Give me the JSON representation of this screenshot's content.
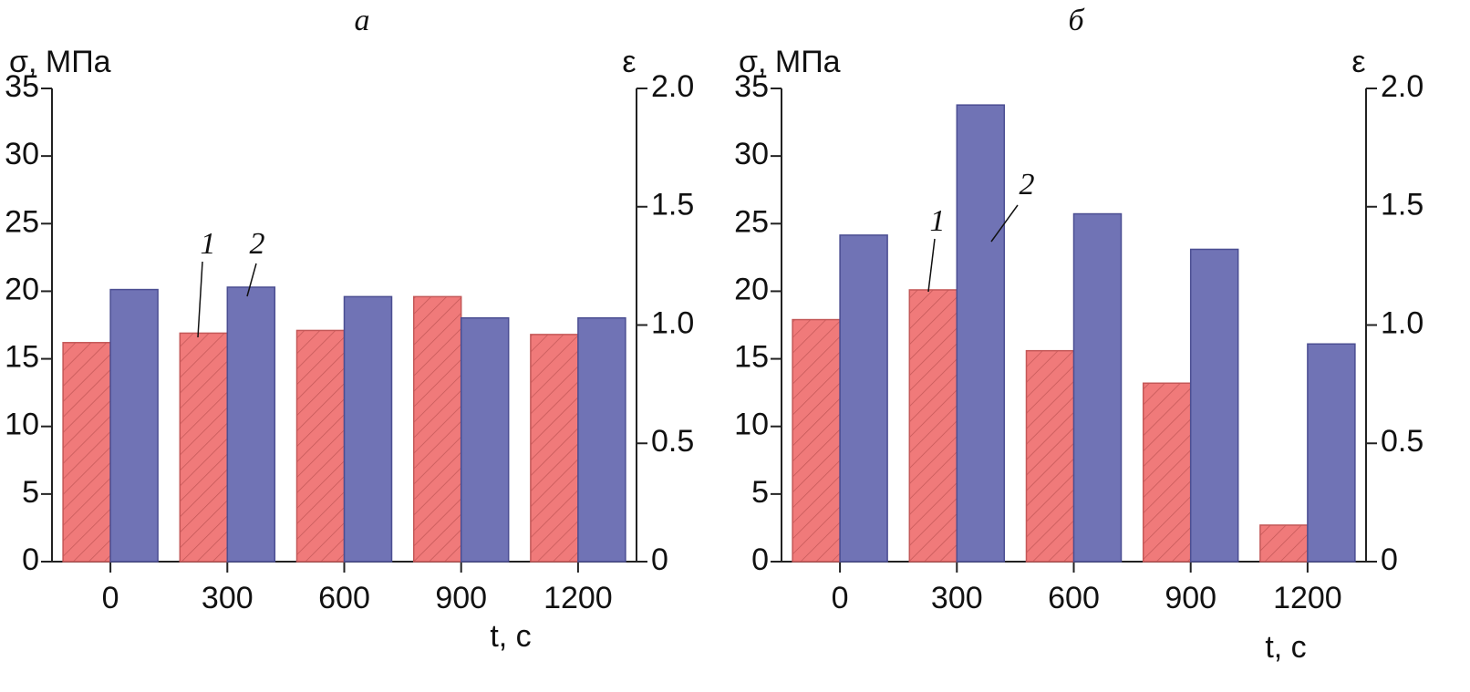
{
  "chart_data": [
    {
      "type": "bar",
      "title": "а",
      "ylabel": "σ, МПа",
      "y2label": "ε",
      "xlabel": "t, с",
      "categories": [
        "0",
        "300",
        "600",
        "900",
        "1200"
      ],
      "series": [
        {
          "color": "#f07a7a",
          "hatch": true,
          "values": [
            16.2,
            16.9,
            17.1,
            19.6,
            16.8
          ]
        },
        {
          "color": "#7073b5",
          "axis": "y2",
          "values": [
            1.15,
            1.16,
            1.12,
            1.03,
            1.03
          ]
        }
      ],
      "ylim": [
        0,
        35
      ],
      "yticks": [
        0,
        5,
        10,
        15,
        20,
        25,
        30,
        35
      ],
      "y2lim": [
        0,
        2
      ],
      "y2ticks": [
        0,
        0.5,
        {
          "value": 1,
          "label": "1.0"
        },
        1.5,
        {
          "value": 2,
          "label": "2.0"
        }
      ],
      "annotations": [
        "1",
        "2"
      ]
    },
    {
      "type": "bar",
      "title": "б",
      "ylabel": "σ, МПа",
      "y2label": "ε",
      "xlabel": "t, с",
      "categories": [
        "0",
        "300",
        "600",
        "900",
        "1200"
      ],
      "series": [
        {
          "color": "#f07a7a",
          "hatch": true,
          "values": [
            17.9,
            20.1,
            15.6,
            13.2,
            2.7
          ]
        },
        {
          "color": "#7073b5",
          "axis": "y2",
          "values": [
            1.38,
            1.93,
            1.47,
            1.32,
            0.92
          ]
        }
      ],
      "ylim": [
        0,
        35
      ],
      "yticks": [
        0,
        5,
        10,
        15,
        20,
        25,
        30,
        35
      ],
      "y2lim": [
        0,
        2
      ],
      "y2ticks": [
        0,
        0.5,
        {
          "value": 1,
          "label": "1.0"
        },
        1.5,
        {
          "value": 2,
          "label": "2.0"
        }
      ],
      "annotations": [
        "1",
        "2"
      ]
    }
  ]
}
